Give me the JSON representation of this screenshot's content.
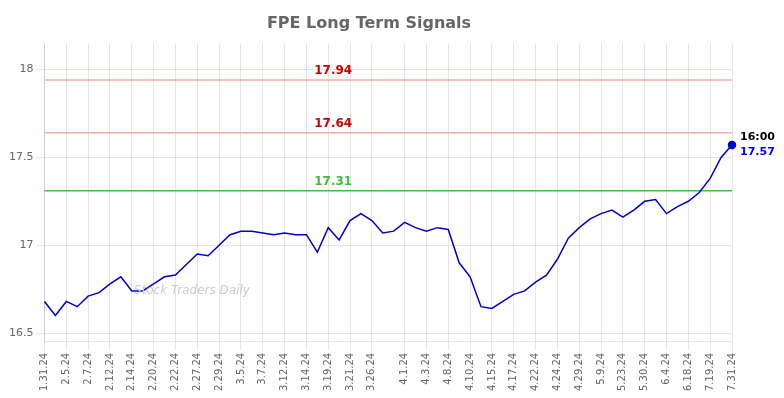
{
  "chart_data": {
    "type": "line",
    "title": "FPE Long Term Signals",
    "categories": [
      "1.31.24",
      null,
      "2.5.24",
      null,
      "2.7.24",
      null,
      "2.12.24",
      null,
      "2.14.24",
      null,
      "2.20.24",
      null,
      "2.22.24",
      null,
      "2.27.24",
      null,
      "2.29.24",
      null,
      "3.5.24",
      null,
      "3.7.24",
      null,
      "3.12.24",
      null,
      "3.14.24",
      null,
      "3.19.24",
      null,
      "3.21.24",
      null,
      "3.26.24",
      null,
      null,
      "4.1.24",
      null,
      "4.3.24",
      null,
      "4.8.24",
      null,
      "4.10.24",
      null,
      "4.15.24",
      null,
      "4.17.24",
      null,
      "4.22.24",
      null,
      "4.24.24",
      null,
      "4.29.24",
      null,
      "5.9.24",
      null,
      "5.23.24",
      null,
      "5.30.24",
      null,
      "6.4.24",
      null,
      "6.18.24",
      null,
      "7.19.24",
      null,
      "7.31.24"
    ],
    "series": [
      {
        "color": "#0000cc",
        "values": [
          16.68,
          16.6,
          16.68,
          16.65,
          16.71,
          16.73,
          16.78,
          16.82,
          16.74,
          16.74,
          16.78,
          16.82,
          16.83,
          16.89,
          16.95,
          16.94,
          17.0,
          17.06,
          17.08,
          17.08,
          17.07,
          17.06,
          17.07,
          17.06,
          17.06,
          16.96,
          17.1,
          17.03,
          17.14,
          17.18,
          17.14,
          17.07,
          17.08,
          17.13,
          17.1,
          17.08,
          17.1,
          17.09,
          16.9,
          16.82,
          16.65,
          16.64,
          16.68,
          16.72,
          16.74,
          16.79,
          16.83,
          16.92,
          17.04,
          17.1,
          17.15,
          17.18,
          17.2,
          17.16,
          17.2,
          17.25,
          17.26,
          17.18,
          17.22,
          17.25,
          17.3,
          17.38,
          17.5,
          17.57
        ]
      }
    ],
    "reference_lines": [
      {
        "value": 17.94,
        "label": "17.94",
        "color": "#cc0000",
        "line_color": "#ffaaaa"
      },
      {
        "value": 17.64,
        "label": "17.64",
        "color": "#cc0000",
        "line_color": "#ffaaaa"
      },
      {
        "value": 17.31,
        "label": "17.31",
        "color": "#44bb44",
        "line_color": "#44bb44"
      }
    ],
    "annotations": [
      {
        "text": "16:00",
        "y": 17.57
      },
      {
        "text": "17.57",
        "y": 17.57,
        "color": "#0000ff"
      },
      {
        "text": "Stock Traders Daily",
        "color": "#cccccc"
      }
    ],
    "ylim": [
      16.45,
      18.15
    ],
    "yticks": [
      16.5,
      17,
      17.5,
      18
    ],
    "grid": true
  }
}
